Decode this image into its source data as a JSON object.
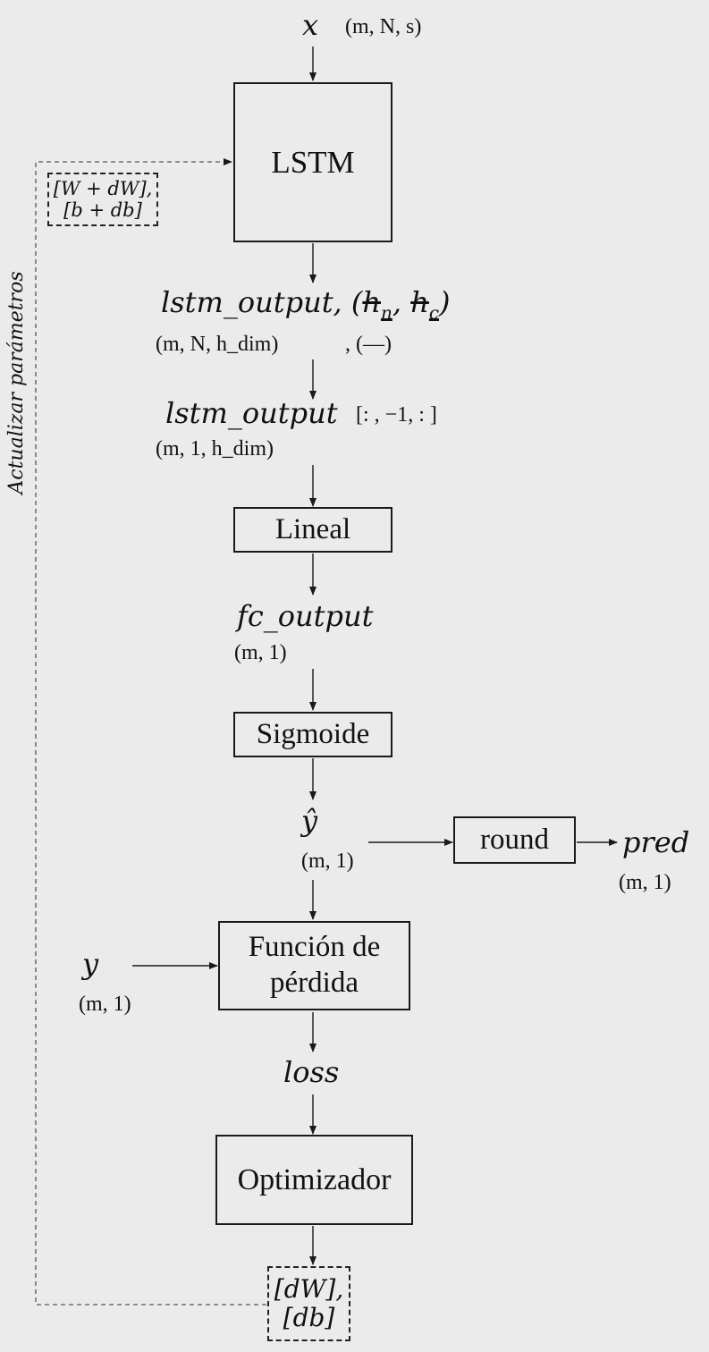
{
  "input": {
    "symbol": "x",
    "dims": "(m, N, s)"
  },
  "lstm": {
    "label": "LSTM"
  },
  "lstm_out": {
    "expr": "lstm_output, (",
    "h_n": "h",
    "h_n_sub": "n",
    "comma": ",",
    "h_c": "h",
    "h_c_sub": "c",
    "close": ")",
    "dims": "(m, N, h_dim)",
    "dims_hidden": ", (—)"
  },
  "slice": {
    "expr": "lstm_output",
    "index": "[: , −1, : ]",
    "dims": "(m, 1, h_dim)"
  },
  "linear": {
    "label": "Lineal"
  },
  "fc": {
    "expr": "fc_output",
    "dims": "(m, 1)"
  },
  "sigmoid": {
    "label": "Sigmoide"
  },
  "yhat": {
    "expr": "ŷ",
    "dims": "(m, 1)"
  },
  "round": {
    "label": "round"
  },
  "pred": {
    "expr": "pred",
    "dims": "(m, 1)"
  },
  "loss_fn": {
    "line1": "Función de",
    "line2": "pérdida"
  },
  "y": {
    "expr": "y",
    "dims": "(m, 1)"
  },
  "loss": {
    "expr": "loss"
  },
  "optimizer": {
    "label": "Optimizador"
  },
  "grads": {
    "line1": "[dW],",
    "line2": "[db]"
  },
  "update": {
    "line1": "[W + dW],",
    "line2": "[b + db]"
  },
  "feedback_label": "Actualizar parámetros"
}
